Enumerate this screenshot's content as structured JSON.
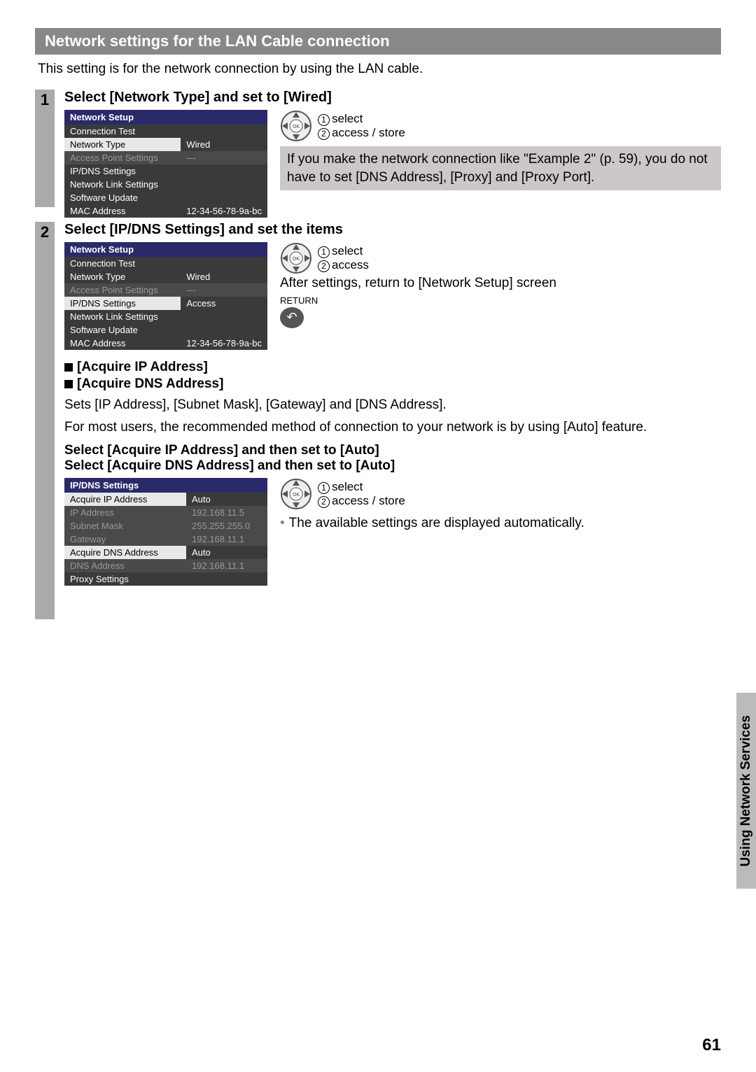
{
  "title": "Network settings for the LAN Cable connection",
  "intro": "This setting is for the network connection by using the LAN cable.",
  "side_tab": "Using Network Services",
  "page_number": "61",
  "remote": {
    "select": "select",
    "access_store": "access / store",
    "access": "access",
    "return_label": "RETURN"
  },
  "step1": {
    "num": "1",
    "heading": "Select [Network Type] and set to [Wired]",
    "menu_title": "Network Setup",
    "rows": [
      {
        "label": "Connection Test",
        "value": "",
        "style": "dark"
      },
      {
        "label": "Network Type",
        "value": "Wired",
        "style": "sel"
      },
      {
        "label": "Access Point Settings",
        "value": "---",
        "style": "dim"
      },
      {
        "label": "IP/DNS Settings",
        "value": "",
        "style": "dark"
      },
      {
        "label": "Network Link Settings",
        "value": "",
        "style": "dark"
      },
      {
        "label": "Software Update",
        "value": "",
        "style": "dark"
      },
      {
        "label": "MAC Address",
        "value": "12-34-56-78-9a-bc",
        "style": "dark"
      }
    ],
    "note": "If you make the network connection like \"Example 2\" (p. 59), you do not have to set [DNS Address], [Proxy] and [Proxy Port]."
  },
  "step2": {
    "num": "2",
    "heading": "Select [IP/DNS Settings] and set the items",
    "menu_title": "Network Setup",
    "rows": [
      {
        "label": "Connection Test",
        "value": "",
        "style": "dark"
      },
      {
        "label": "Network Type",
        "value": "Wired",
        "style": "dark"
      },
      {
        "label": "Access Point Settings",
        "value": "---",
        "style": "dim"
      },
      {
        "label": "IP/DNS Settings",
        "value": "Access",
        "style": "sel"
      },
      {
        "label": "Network Link Settings",
        "value": "",
        "style": "dark"
      },
      {
        "label": "Software Update",
        "value": "",
        "style": "dark"
      },
      {
        "label": "MAC Address",
        "value": "12-34-56-78-9a-bc",
        "style": "dark"
      }
    ],
    "after_text": "After settings, return to [Network Setup] screen",
    "acquire_ip": "[Acquire IP Address]",
    "acquire_dns": "[Acquire DNS Address]",
    "sets_text": "Sets [IP Address], [Subnet Mask], [Gateway] and [DNS Address].",
    "recommend_text": "For most users, the recommended method of connection to your network is by using [Auto] feature.",
    "select_ip_auto": "Select [Acquire IP Address] and then set to [Auto]",
    "select_dns_auto": "Select [Acquire DNS Address] and then set to [Auto]",
    "ipdns_title": "IP/DNS Settings",
    "ipdns_rows": [
      {
        "label": "Acquire IP Address",
        "value": "Auto",
        "style": "sel"
      },
      {
        "label": "IP Address",
        "value": "192.168.11.5",
        "style": "dim"
      },
      {
        "label": "Subnet Mask",
        "value": "255.255.255.0",
        "style": "dim"
      },
      {
        "label": "Gateway",
        "value": "192.168.11.1",
        "style": "dim"
      },
      {
        "label": "Acquire DNS Address",
        "value": "Auto",
        "style": "selplain"
      },
      {
        "label": "DNS Address",
        "value": "192.168.11.1",
        "style": "dim"
      },
      {
        "label": "Proxy Settings",
        "value": "",
        "style": "dark"
      }
    ],
    "auto_note": "The available settings are displayed automatically."
  }
}
